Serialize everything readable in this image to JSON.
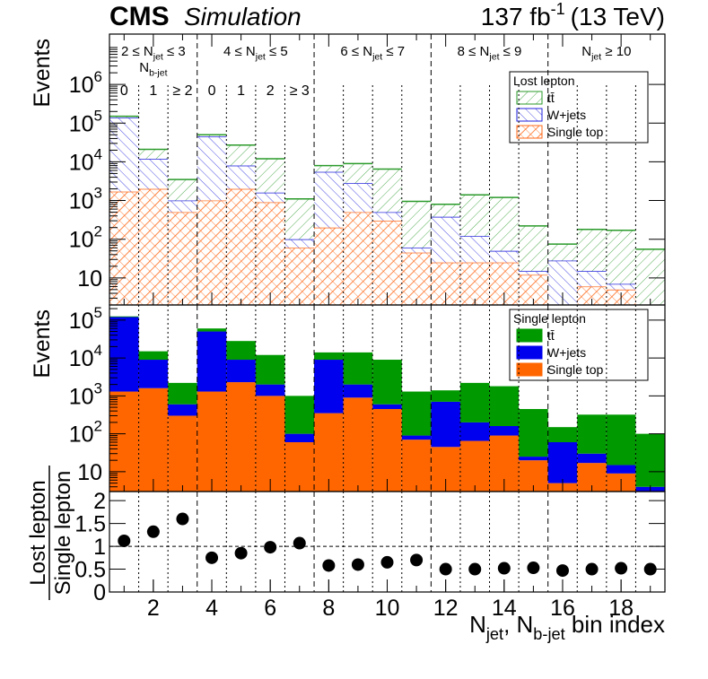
{
  "header": {
    "experiment": "CMS",
    "status": "Simulation",
    "lumi": "137 fb",
    "lumi_sup": "-1",
    "energy": "(13 TeV)"
  },
  "regions": [
    {
      "parts": [
        {
          "text": "2 ≤ N"
        },
        {
          "text": "jet",
          "sub": true
        },
        {
          "text": " ≤ 3"
        }
      ]
    },
    {
      "parts": [
        {
          "text": "4 ≤ N"
        },
        {
          "text": "jet",
          "sub": true
        },
        {
          "text": " ≤ 5"
        }
      ]
    },
    {
      "parts": [
        {
          "text": "6 ≤ N"
        },
        {
          "text": "jet",
          "sub": true
        },
        {
          "text": " ≤ 7"
        }
      ]
    },
    {
      "parts": [
        {
          "text": "8 ≤ N"
        },
        {
          "text": "jet",
          "sub": true
        },
        {
          "text": " ≤ 9"
        }
      ]
    },
    {
      "parts": [
        {
          "text": "N"
        },
        {
          "text": "jet",
          "sub": true
        },
        {
          "text": " ≥ 10"
        }
      ]
    }
  ],
  "nb_label": [
    {
      "text": "N"
    },
    {
      "text": "b-jet",
      "sub": true
    }
  ],
  "nb_bins": [
    "0",
    "1",
    "≥ 2",
    "0",
    "1",
    "2",
    "≥ 3"
  ],
  "chart_data": [
    {
      "type": "bar",
      "stacked": true,
      "fill": "hatch",
      "log": true,
      "ylabel": "Events",
      "legend_title": "Lost lepton",
      "x": [
        1,
        2,
        3,
        4,
        5,
        6,
        7,
        8,
        9,
        10,
        11,
        12,
        13,
        14,
        15,
        16,
        17,
        18,
        19
      ],
      "xlim": [
        0.5,
        19.5
      ],
      "ylim": [
        2,
        20000000
      ],
      "yticks": [
        10,
        {
          "value": 100,
          "label": "10",
          "exp": "2"
        },
        {
          "value": 1000,
          "label": "10",
          "exp": "3"
        },
        {
          "value": 10000,
          "label": "10",
          "exp": "4"
        },
        {
          "value": 100000,
          "label": "10",
          "exp": "5"
        },
        {
          "value": 1000000,
          "label": "10",
          "exp": "6"
        }
      ],
      "series": [
        {
          "name": "Single top",
          "color": "#ff6a1a",
          "values": [
            1700,
            2000,
            500,
            1000,
            2000,
            900,
            60,
            200,
            500,
            300,
            45,
            25,
            25,
            25,
            12,
            1,
            6,
            5,
            1
          ]
        },
        {
          "name": "W+jets",
          "color": "#2222dd",
          "values": [
            138300,
            10000,
            500,
            44000,
            6000,
            700,
            40,
            5300,
            2300,
            200,
            15,
            355,
            95,
            25,
            3,
            27,
            9,
            2,
            1
          ]
        },
        {
          "name": "tt̄",
          "color": "#2a9a2a",
          "values": [
            10000,
            9000,
            2500,
            5000,
            19000,
            10400,
            1000,
            2500,
            6200,
            6000,
            890,
            420,
            1280,
            1150,
            205,
            47,
            165,
            163,
            53
          ]
        }
      ]
    },
    {
      "type": "bar",
      "stacked": true,
      "fill": "solid",
      "log": true,
      "ylabel": "Events",
      "legend_title": "Single lepton",
      "x": [
        1,
        2,
        3,
        4,
        5,
        6,
        7,
        8,
        9,
        10,
        11,
        12,
        13,
        14,
        15,
        16,
        17,
        18,
        19
      ],
      "xlim": [
        0.5,
        19.5
      ],
      "ylim": [
        3,
        250000
      ],
      "yticks": [
        10,
        {
          "value": 100,
          "label": "10",
          "exp": "2"
        },
        {
          "value": 1000,
          "label": "10",
          "exp": "3"
        },
        {
          "value": 10000,
          "label": "10",
          "exp": "4"
        },
        {
          "value": 100000,
          "label": "10",
          "exp": "5"
        }
      ],
      "series": [
        {
          "name": "Single top",
          "color": "#ff6600",
          "values": [
            1300,
            1600,
            300,
            1300,
            2300,
            1000,
            60,
            350,
            900,
            450,
            70,
            45,
            65,
            90,
            20,
            5,
            17,
            9,
            2
          ]
        },
        {
          "name": "W+jets",
          "color": "#0000ee",
          "values": [
            118700,
            7400,
            300,
            48700,
            6700,
            1000,
            40,
            8650,
            1100,
            150,
            20,
            655,
            135,
            70,
            5,
            55,
            13,
            6,
            2
          ]
        },
        {
          "name": "tt̄",
          "color": "#009900",
          "values": [
            5000,
            6000,
            1600,
            10000,
            19000,
            10000,
            900,
            5000,
            12000,
            8400,
            1210,
            700,
            2000,
            1640,
            425,
            90,
            290,
            305,
            96
          ]
        }
      ]
    },
    {
      "type": "scatter",
      "ylabel_num": "Lost lepton",
      "ylabel_den": "Single lepton",
      "color": "#000000",
      "x": [
        1,
        2,
        3,
        4,
        5,
        6,
        7,
        8,
        9,
        10,
        11,
        12,
        13,
        14,
        15,
        16,
        17,
        18,
        19
      ],
      "xlim": [
        0.5,
        19.5
      ],
      "values": [
        1.12,
        1.32,
        1.6,
        0.75,
        0.85,
        0.98,
        1.07,
        0.58,
        0.6,
        0.65,
        0.7,
        0.5,
        0.5,
        0.52,
        0.53,
        0.47,
        0.5,
        0.52,
        0.5
      ],
      "ylim": [
        0,
        2.2
      ],
      "yticks": [
        0,
        0.5,
        1,
        1.5,
        2
      ],
      "xticks": [
        2,
        4,
        6,
        8,
        10,
        12,
        14,
        16,
        18
      ],
      "xlabel": [
        {
          "text": "N"
        },
        {
          "text": "jet",
          "sub": true
        },
        {
          "text": ", N"
        },
        {
          "text": "b-jet",
          "sub": true
        },
        {
          "text": " bin index"
        }
      ]
    }
  ]
}
